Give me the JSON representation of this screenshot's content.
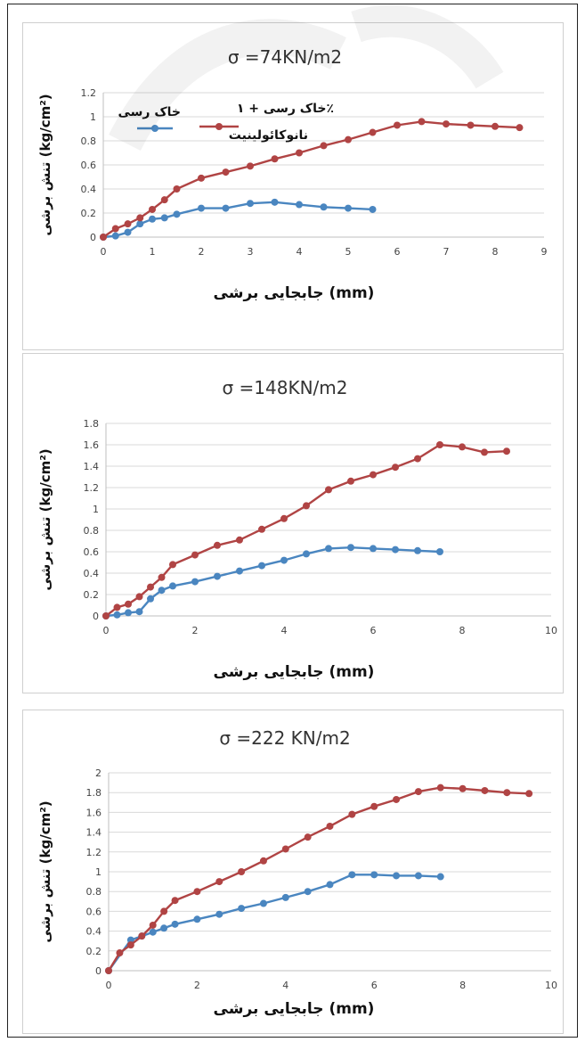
{
  "colors": {
    "clay": "#4a86c0",
    "nano": "#b04444",
    "grid": "#d9d9d9"
  },
  "chart_data": [
    {
      "type": "line",
      "title_sigma": "σ",
      "title": "=74KN/m2",
      "xlabel": "جابجایی برشی (mm)",
      "ylabel": "تنش برشی (kg/cm²)",
      "xlim": [
        0,
        9
      ],
      "xticks": [
        0,
        1,
        2,
        3,
        4,
        5,
        6,
        7,
        8,
        9
      ],
      "ylim": [
        0,
        1.2
      ],
      "yticks": [
        "0",
        "0.2",
        "0.4",
        "0.6",
        "0.8",
        "1",
        "1.2"
      ],
      "grid": "horizontal",
      "legend": {
        "placement": "top-left",
        "clay_label": "خاک رسی",
        "nano_label_1": "خاک رسی + ۱٪",
        "nano_label_2": "نانوکائولینیت"
      },
      "series": [
        {
          "name": "خاک رسی",
          "color": "#4a86c0",
          "x": [
            0,
            0.25,
            0.5,
            0.75,
            1,
            1.25,
            1.5,
            2,
            2.5,
            3,
            3.5,
            4,
            4.5,
            5,
            5.5
          ],
          "y": [
            0,
            0.01,
            0.04,
            0.11,
            0.15,
            0.16,
            0.19,
            0.24,
            0.24,
            0.28,
            0.29,
            0.27,
            0.25,
            0.24,
            0.23
          ]
        },
        {
          "name": "خاک رسی + ۱٪ نانوکائولینیت",
          "color": "#b04444",
          "x": [
            0,
            0.25,
            0.5,
            0.75,
            1,
            1.25,
            1.5,
            2,
            2.5,
            3,
            3.5,
            4,
            4.5,
            5,
            5.5,
            6,
            6.5,
            7,
            7.5,
            8,
            8.5
          ],
          "y": [
            0,
            0.07,
            0.11,
            0.16,
            0.23,
            0.31,
            0.4,
            0.49,
            0.54,
            0.59,
            0.65,
            0.7,
            0.76,
            0.81,
            0.87,
            0.93,
            0.96,
            0.94,
            0.93,
            0.92,
            0.91
          ]
        }
      ]
    },
    {
      "type": "line",
      "title_sigma": "σ",
      "title": "=148KN/m2",
      "xlabel": "جابجایی برشی (mm)",
      "ylabel": "تنش برشی (kg/cm²)",
      "xlim": [
        0,
        10
      ],
      "xticks": [
        0,
        2,
        4,
        6,
        8,
        10
      ],
      "ylim": [
        0,
        1.8
      ],
      "yticks": [
        "0",
        "0.2",
        "0.4",
        "0.6",
        "0.8",
        "1",
        "1.2",
        "1.4",
        "1.6",
        "1.8"
      ],
      "grid": "horizontal",
      "series": [
        {
          "name": "خاک رسی",
          "color": "#4a86c0",
          "x": [
            0,
            0.25,
            0.5,
            0.75,
            1,
            1.25,
            1.5,
            2,
            2.5,
            3,
            3.5,
            4,
            4.5,
            5,
            5.5,
            6,
            6.5,
            7,
            7.5
          ],
          "y": [
            0,
            0.01,
            0.03,
            0.04,
            0.16,
            0.24,
            0.28,
            0.32,
            0.37,
            0.42,
            0.47,
            0.52,
            0.58,
            0.63,
            0.64,
            0.63,
            0.62,
            0.61,
            0.6
          ]
        },
        {
          "name": "خاک رسی + ۱٪ نانوکائولینیت",
          "color": "#b04444",
          "x": [
            0,
            0.25,
            0.5,
            0.75,
            1,
            1.25,
            1.5,
            2,
            2.5,
            3,
            3.5,
            4,
            4.5,
            5,
            5.5,
            6,
            6.5,
            7,
            7.5,
            8,
            8.5,
            9
          ],
          "y": [
            0,
            0.08,
            0.11,
            0.18,
            0.27,
            0.36,
            0.48,
            0.57,
            0.66,
            0.71,
            0.81,
            0.91,
            1.03,
            1.18,
            1.26,
            1.32,
            1.39,
            1.47,
            1.6,
            1.58,
            1.53,
            1.54
          ]
        }
      ]
    },
    {
      "type": "line",
      "title_sigma": "σ",
      "title": "=222 KN/m2",
      "xlabel": "جابجایی برشی (mm)",
      "ylabel": "تنش برشی (kg/cm²)",
      "xlim": [
        0,
        10
      ],
      "xticks": [
        0,
        2,
        4,
        6,
        8,
        10
      ],
      "ylim": [
        0,
        2
      ],
      "yticks": [
        "0",
        "0.2",
        "0.4",
        "0.6",
        "0.8",
        "1",
        "1.2",
        "1.4",
        "1.6",
        "1.8",
        "2"
      ],
      "grid": "horizontal",
      "series": [
        {
          "name": "خاک رسی",
          "color": "#4a86c0",
          "x": [
            0,
            0.5,
            0.75,
            1,
            1.25,
            1.5,
            2,
            2.5,
            3,
            3.5,
            4,
            4.5,
            5,
            5.5,
            6,
            6.5,
            7,
            7.5
          ],
          "y": [
            0,
            0.31,
            0.35,
            0.39,
            0.43,
            0.47,
            0.52,
            0.57,
            0.63,
            0.68,
            0.74,
            0.8,
            0.87,
            0.97,
            0.97,
            0.96,
            0.96,
            0.95
          ]
        },
        {
          "name": "خاک رسی + ۱٪ نانوکائولینیت",
          "color": "#b04444",
          "x": [
            0,
            0.25,
            0.5,
            0.75,
            1,
            1.25,
            1.5,
            2,
            2.5,
            3,
            3.5,
            4,
            4.5,
            5,
            5.5,
            6,
            6.5,
            7,
            7.5,
            8,
            8.5,
            9,
            9.5
          ],
          "y": [
            0,
            0.18,
            0.26,
            0.35,
            0.46,
            0.6,
            0.71,
            0.8,
            0.9,
            1.0,
            1.11,
            1.23,
            1.35,
            1.46,
            1.58,
            1.66,
            1.73,
            1.81,
            1.85,
            1.84,
            1.82,
            1.8,
            1.79
          ]
        }
      ]
    }
  ]
}
